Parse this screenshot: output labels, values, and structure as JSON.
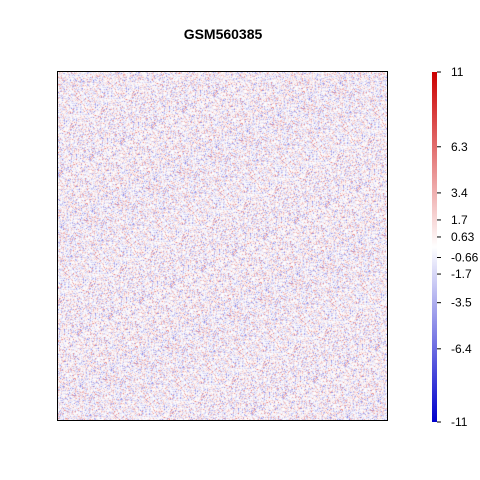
{
  "chart_data": {
    "type": "heatmap",
    "title": "GSM560385",
    "xlabel": "",
    "ylabel": "",
    "color_scale": {
      "min": -11,
      "max": 11,
      "low_color": "#0000CC",
      "mid_color": "#FFFFFF",
      "high_color": "#CC0000",
      "tick_values": [
        11,
        6.3,
        3.4,
        1.7,
        0.63,
        -0.66,
        -1.7,
        -3.5,
        -6.4,
        -11
      ],
      "tick_labels": [
        "11",
        "6.3",
        "3.4",
        "1.7",
        "0.63",
        "-0.66",
        "-1.7",
        "-3.5",
        "-6.4",
        "-11"
      ]
    },
    "legend_placement": "right",
    "grid": false
  }
}
